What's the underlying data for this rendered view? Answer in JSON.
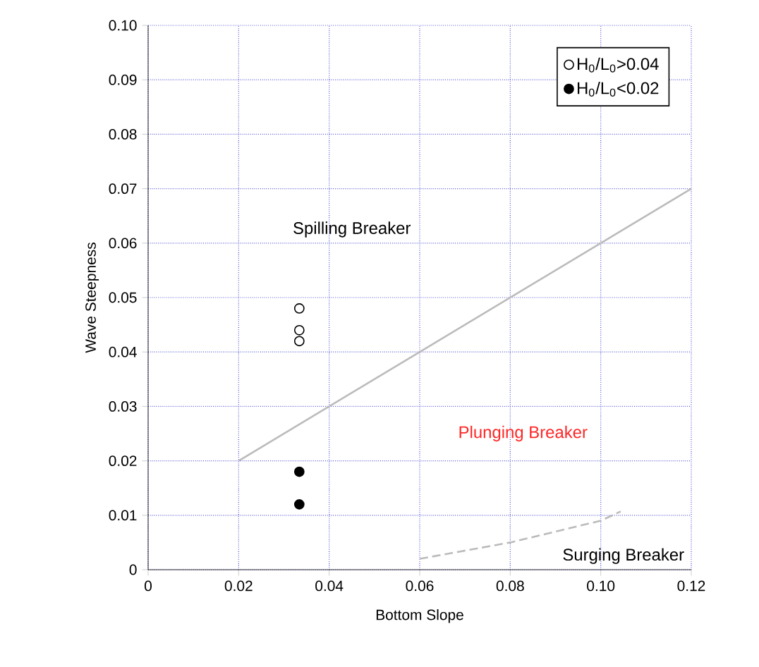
{
  "chart_data": {
    "type": "scatter",
    "xlabel": "Bottom Slope",
    "ylabel": "Wave Steepness",
    "xlim": [
      0,
      0.12
    ],
    "ylim": [
      0,
      0.1
    ],
    "xticks": [
      0,
      0.02,
      0.04,
      0.06,
      0.08,
      {
        "value": 0.1,
        "label": "0.10"
      },
      0.12
    ],
    "yticks": [
      0,
      0.01,
      0.02,
      0.03,
      0.04,
      0.05,
      0.06,
      0.07,
      0.08,
      0.09,
      {
        "value": 0.1,
        "label": "0.10"
      }
    ],
    "grid": true,
    "legend": "top right",
    "marker": "circle",
    "series": [
      {
        "name": "H$_{0}$/L$_{0}$>0.04",
        "color": "#000000",
        "x": [
          0.0334,
          0.0334,
          0.0334
        ],
        "values": [
          0.048,
          0.044,
          0.042
        ]
      },
      {
        "name": "H$_{0}$/L$_{0}$<0.02",
        "color": "#000000",
        "x": [
          0.0334,
          0.0334
        ],
        "values": [
          0.018,
          0.012
        ]
      },
      {
        "type": "line",
        "color": "#bbbbbb",
        "line_style": "solid",
        "marker": "none",
        "x": [
          0.02,
          0.12
        ],
        "values": [
          0.02,
          0.07
        ]
      },
      {
        "type": "line",
        "color": "#bbbbbb",
        "line_style": "dashed",
        "marker": "none",
        "x": [
          0.06,
          0.08,
          0.1,
          0.1044
        ],
        "values": [
          0.002,
          0.005,
          0.009,
          0.0107
        ]
      }
    ],
    "annotations": [
      "Spilling Breaker",
      "Plunging Breaker",
      "Surging Breaker"
    ]
  }
}
